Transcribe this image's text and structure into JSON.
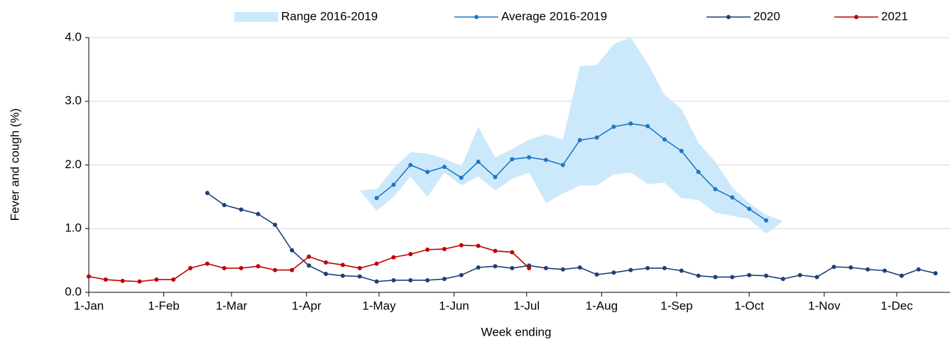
{
  "chart_data": {
    "type": "line",
    "x_label": "Week ending",
    "y_label": "Fever and cough (%)",
    "xlim": [
      0,
      356
    ],
    "ylim": [
      0,
      4
    ],
    "xticks": [
      {
        "value": 0,
        "label": "1-Jan"
      },
      {
        "value": 31,
        "label": "1-Feb"
      },
      {
        "value": 59,
        "label": "1-Mar"
      },
      {
        "value": 90,
        "label": "1-Apr"
      },
      {
        "value": 120,
        "label": "1-May"
      },
      {
        "value": 151,
        "label": "1-Jun"
      },
      {
        "value": 181,
        "label": "1-Jul"
      },
      {
        "value": 212,
        "label": "1-Aug"
      },
      {
        "value": 243,
        "label": "1-Sep"
      },
      {
        "value": 273,
        "label": "1-Oct"
      },
      {
        "value": 304,
        "label": "1-Nov"
      },
      {
        "value": 334,
        "label": "1-Dec"
      }
    ],
    "yticks": [
      {
        "value": 0,
        "label": "0.0"
      },
      {
        "value": 1,
        "label": "1.0"
      },
      {
        "value": 2,
        "label": "2.0"
      },
      {
        "value": 3,
        "label": "3.0"
      },
      {
        "value": 4,
        "label": "4.0"
      }
    ],
    "grid": true,
    "legend": "top",
    "series": [
      {
        "name": "Range 2016-2019",
        "type": "range",
        "color": "#cce9fb",
        "x": [
          112,
          119,
          126,
          133,
          140,
          147,
          154,
          161,
          168,
          175,
          182,
          189,
          196,
          203,
          210,
          217,
          224,
          231,
          238,
          245,
          252,
          259,
          266,
          273,
          280,
          287
        ],
        "upper": [
          1.6,
          1.62,
          1.95,
          2.2,
          2.18,
          2.1,
          1.98,
          2.6,
          2.12,
          2.25,
          2.4,
          2.48,
          2.4,
          3.55,
          3.57,
          3.9,
          4.0,
          3.6,
          3.1,
          2.88,
          2.35,
          2.05,
          1.65,
          1.4,
          1.22,
          1.12
        ],
        "lower": [
          1.6,
          1.28,
          1.5,
          1.82,
          1.5,
          1.88,
          1.68,
          1.82,
          1.6,
          1.78,
          1.88,
          1.4,
          1.55,
          1.68,
          1.68,
          1.85,
          1.88,
          1.7,
          1.72,
          1.48,
          1.45,
          1.25,
          1.2,
          1.15,
          0.92,
          1.12
        ]
      },
      {
        "name": "Average 2016-2019",
        "type": "line",
        "color": "#1f77c4",
        "x": [
          119,
          126,
          133,
          140,
          147,
          154,
          161,
          168,
          175,
          182,
          189,
          196,
          203,
          210,
          217,
          224,
          231,
          238,
          245,
          252,
          259,
          266,
          273,
          280
        ],
        "values": [
          1.48,
          1.69,
          2.0,
          1.89,
          1.97,
          1.8,
          2.05,
          1.81,
          2.09,
          2.12,
          2.08,
          2.0,
          2.39,
          2.43,
          2.6,
          2.65,
          2.61,
          2.4,
          2.22,
          1.89,
          1.62,
          1.49,
          1.31,
          1.13
        ]
      },
      {
        "name": "2020",
        "type": "line",
        "color": "#1f3f77",
        "x": [
          49,
          56,
          63,
          70,
          77,
          84,
          91,
          98,
          105,
          112,
          119,
          126,
          133,
          140,
          147,
          154,
          161,
          168,
          175,
          182,
          189,
          196,
          203,
          210,
          217,
          224,
          231,
          238,
          245,
          252,
          259,
          266,
          273,
          280,
          287,
          294,
          301,
          308,
          315,
          322,
          329,
          336,
          343,
          350
        ],
        "values": [
          1.56,
          1.37,
          1.3,
          1.23,
          1.06,
          0.66,
          0.42,
          0.29,
          0.26,
          0.25,
          0.17,
          0.19,
          0.19,
          0.19,
          0.21,
          0.27,
          0.39,
          0.41,
          0.38,
          0.42,
          0.38,
          0.36,
          0.39,
          0.28,
          0.31,
          0.35,
          0.38,
          0.38,
          0.34,
          0.26,
          0.24,
          0.24,
          0.27,
          0.26,
          0.21,
          0.27,
          0.24,
          0.4,
          0.39,
          0.36,
          0.34,
          0.26,
          0.36,
          0.3
        ]
      },
      {
        "name": "2021",
        "type": "line",
        "color": "#c00000",
        "x": [
          0,
          7,
          14,
          21,
          28,
          35,
          42,
          49,
          56,
          63,
          70,
          77,
          84,
          91,
          98,
          105,
          112,
          119,
          126,
          133,
          140,
          147,
          154,
          161,
          168,
          175,
          182
        ],
        "values": [
          0.25,
          0.2,
          0.18,
          0.17,
          0.2,
          0.2,
          0.38,
          0.45,
          0.38,
          0.38,
          0.41,
          0.35,
          0.35,
          0.56,
          0.47,
          0.43,
          0.38,
          0.45,
          0.55,
          0.6,
          0.67,
          0.68,
          0.74,
          0.73,
          0.65,
          0.63,
          0.38
        ]
      }
    ]
  }
}
